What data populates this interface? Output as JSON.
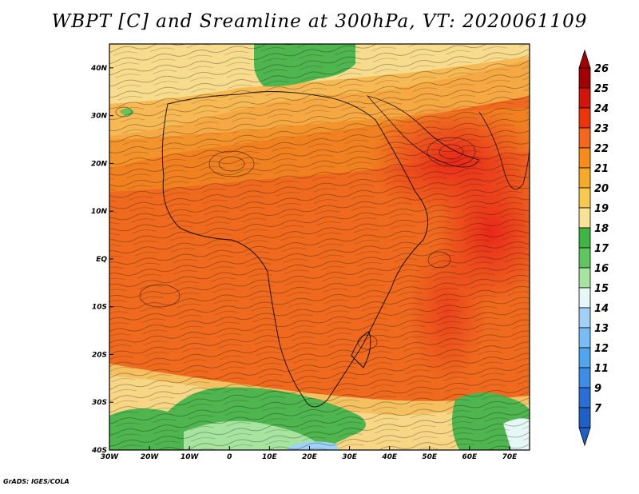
{
  "title": "WBPT [C] and Sreamline at 300hPa, VT: 2020061109",
  "credit": "GrADS: IGES/COLA",
  "map": {
    "lon_range": [
      -30,
      75
    ],
    "lat_range": [
      -40,
      45
    ],
    "x_ticks": [
      {
        "value": -30,
        "label": "30W"
      },
      {
        "value": -20,
        "label": "20W"
      },
      {
        "value": -10,
        "label": "10W"
      },
      {
        "value": 0,
        "label": "0"
      },
      {
        "value": 10,
        "label": "10E"
      },
      {
        "value": 20,
        "label": "20E"
      },
      {
        "value": 30,
        "label": "30E"
      },
      {
        "value": 40,
        "label": "40E"
      },
      {
        "value": 50,
        "label": "50E"
      },
      {
        "value": 60,
        "label": "60E"
      },
      {
        "value": 70,
        "label": "70E"
      }
    ],
    "y_ticks": [
      {
        "value": 40,
        "label": "40N"
      },
      {
        "value": 30,
        "label": "30N"
      },
      {
        "value": 20,
        "label": "20N"
      },
      {
        "value": 10,
        "label": "10N"
      },
      {
        "value": 0,
        "label": "EQ"
      },
      {
        "value": -10,
        "label": "10S"
      },
      {
        "value": -20,
        "label": "20S"
      },
      {
        "value": -30,
        "label": "30S"
      },
      {
        "value": -40,
        "label": "40S"
      }
    ]
  },
  "colorbar": {
    "levels": [
      "26",
      "25",
      "24",
      "23",
      "22",
      "21",
      "20",
      "19",
      "18",
      "17",
      "16",
      "15",
      "14",
      "13",
      "12",
      "11",
      "9",
      "7"
    ],
    "colors": [
      "#a50000",
      "#d4140b",
      "#f0340a",
      "#f5661e",
      "#f78c1a",
      "#f5aa28",
      "#f8c850",
      "#f8e296",
      "#3fb542",
      "#5ec85e",
      "#a6e4a0",
      "#e6f8f6",
      "#a0d2f8",
      "#78bef5",
      "#4fa5f0",
      "#3b8de8",
      "#2a6fd8",
      "#1e5fc8"
    ]
  }
}
